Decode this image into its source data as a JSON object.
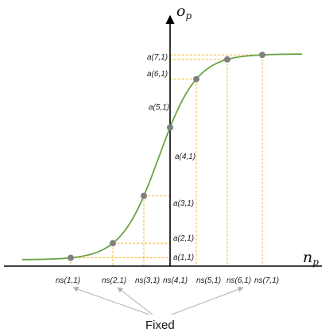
{
  "diagram": {
    "y_axis_label": "o",
    "y_axis_subscript": "p",
    "x_axis_label": "n",
    "x_axis_subscript": "p",
    "point_labels_y": [
      "a(1,1)",
      "a(2,1)",
      "a(3,1)",
      "a(4,1)",
      "a(5,1)",
      "a(6,1)",
      "a(7,1)"
    ],
    "point_labels_x": [
      "ns(1,1)",
      "ns(2,1)",
      "ns(3,1)",
      "ns(4,1)",
      "ns(5,1)",
      "ns(6,1)",
      "ns(7,1)"
    ],
    "fixed_label": "Fixed",
    "colors": {
      "curve": "#6aa343",
      "points": "#7f7f7f",
      "guides": "#f2b63c",
      "axes": "#000000",
      "arrows": "#b0b0b0"
    }
  }
}
